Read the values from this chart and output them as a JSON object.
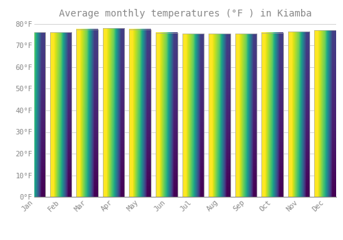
{
  "title": "Average monthly temperatures (°F ) in Kiamba",
  "months": [
    "Jan",
    "Feb",
    "Mar",
    "Apr",
    "May",
    "Jun",
    "Jul",
    "Aug",
    "Sep",
    "Oct",
    "Nov",
    "Dec"
  ],
  "values": [
    76.1,
    76.1,
    77.5,
    78.0,
    77.5,
    76.0,
    75.5,
    75.5,
    75.5,
    75.9,
    76.5,
    77.0
  ],
  "bar_color_top": "#FFC830",
  "bar_color_bottom": "#FFA000",
  "background_color": "#FFFFFF",
  "plot_bg_color": "#FFFFFF",
  "grid_color": "#CCCCCC",
  "text_color": "#888888",
  "ylim": [
    0,
    80
  ],
  "yticks": [
    0,
    10,
    20,
    30,
    40,
    50,
    60,
    70,
    80
  ],
  "title_fontsize": 10,
  "bar_width": 0.82
}
